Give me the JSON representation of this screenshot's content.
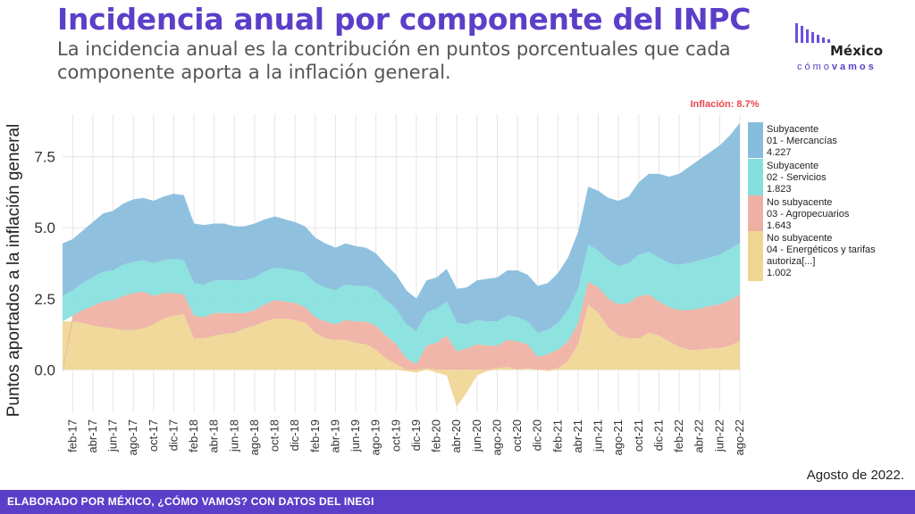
{
  "header": {
    "title": "Incidencia anual por componente del INPC",
    "subtitle": "La incidencia anual es la contribución en puntos porcentuales que cada componente aporta a la inflación general."
  },
  "logo": {
    "name": "México",
    "tagline_a": "cómo",
    "tagline_b": "vamos"
  },
  "footer": {
    "credit": "ELABORADO POR MÉXICO, ¿CÓMO VAMOS? CON DATOS DEL INEGI",
    "date_note": "Agosto de 2022."
  },
  "colors": {
    "mercancias": "#86bcdc",
    "servicios": "#84e0dc",
    "agropecuarios": "#eeb0a2",
    "energeticos": "#f0d592",
    "annotation": "#e8474f",
    "grid": "#e5e5e5"
  },
  "chart_data": {
    "type": "area",
    "stacked": true,
    "ylabel": "Puntos aportados a la inflación general",
    "xlabel": "",
    "ylim": [
      -1.5,
      9.0
    ],
    "yticks": [
      0.0,
      2.5,
      5.0,
      7.5
    ],
    "ytick_labels": [
      "0.0",
      "2.5",
      "5.0",
      "7.5"
    ],
    "grid": true,
    "legend_position": "right",
    "annotation": "Inflación: 8.7%",
    "x_tick_labels": [
      "feb-17",
      "abr-17",
      "jun-17",
      "ago-17",
      "oct-17",
      "dic-17",
      "feb-18",
      "abr-18",
      "jun-18",
      "ago-18",
      "oct-18",
      "dic-18",
      "feb-19",
      "abr-19",
      "jun-19",
      "ago-19",
      "oct-19",
      "dic-19",
      "feb-20",
      "abr-20",
      "jun-20",
      "ago-20",
      "oct-20",
      "dic-20",
      "feb-21",
      "abr-21",
      "jun-21",
      "ago-21",
      "oct-21",
      "dic-21",
      "feb-22",
      "abr-22",
      "jun-22",
      "ago-22"
    ],
    "x": [
      "ene-17",
      "feb-17",
      "mar-17",
      "abr-17",
      "may-17",
      "jun-17",
      "jul-17",
      "ago-17",
      "sep-17",
      "oct-17",
      "nov-17",
      "dic-17",
      "ene-18",
      "feb-18",
      "mar-18",
      "abr-18",
      "may-18",
      "jun-18",
      "jul-18",
      "ago-18",
      "sep-18",
      "oct-18",
      "nov-18",
      "dic-18",
      "ene-19",
      "feb-19",
      "mar-19",
      "abr-19",
      "may-19",
      "jun-19",
      "jul-19",
      "ago-19",
      "sep-19",
      "oct-19",
      "nov-19",
      "dic-19",
      "ene-20",
      "feb-20",
      "mar-20",
      "abr-20",
      "may-20",
      "jun-20",
      "jul-20",
      "ago-20",
      "sep-20",
      "oct-20",
      "nov-20",
      "dic-20",
      "ene-21",
      "feb-21",
      "mar-21",
      "abr-21",
      "may-21",
      "jun-21",
      "jul-21",
      "ago-21",
      "sep-21",
      "oct-21",
      "nov-21",
      "dic-21",
      "ene-22",
      "feb-22",
      "mar-22",
      "abr-22",
      "may-22",
      "jun-22",
      "jul-22",
      "ago-22"
    ],
    "series": [
      {
        "name": "Subyacente\n01 - Mercancías\n4.227",
        "key": "mercancias",
        "values": [
          1.85,
          1.8,
          1.85,
          1.95,
          2.05,
          2.1,
          2.15,
          2.2,
          2.2,
          2.2,
          2.25,
          2.3,
          2.3,
          2.1,
          2.1,
          2.0,
          2.0,
          1.9,
          1.9,
          1.9,
          1.85,
          1.8,
          1.75,
          1.7,
          1.65,
          1.6,
          1.55,
          1.5,
          1.45,
          1.4,
          1.35,
          1.3,
          1.25,
          1.2,
          1.2,
          1.15,
          1.15,
          1.1,
          1.15,
          1.2,
          1.3,
          1.4,
          1.5,
          1.55,
          1.6,
          1.65,
          1.65,
          1.65,
          1.65,
          1.75,
          1.85,
          2.0,
          2.05,
          2.1,
          2.2,
          2.3,
          2.35,
          2.55,
          2.75,
          2.95,
          3.05,
          3.2,
          3.4,
          3.55,
          3.7,
          3.85,
          4.0,
          4.227
        ]
      },
      {
        "name": "Subyacente\n02 - Servicios\n1.823",
        "key": "servicios",
        "values": [
          0.9,
          0.9,
          0.95,
          1.0,
          1.05,
          1.05,
          1.1,
          1.1,
          1.1,
          1.15,
          1.15,
          1.2,
          1.2,
          1.15,
          1.15,
          1.15,
          1.15,
          1.15,
          1.15,
          1.15,
          1.15,
          1.15,
          1.15,
          1.15,
          1.2,
          1.2,
          1.2,
          1.2,
          1.25,
          1.25,
          1.25,
          1.25,
          1.25,
          1.25,
          1.2,
          1.15,
          1.15,
          1.2,
          1.2,
          1.0,
          0.85,
          0.85,
          0.85,
          0.85,
          0.85,
          0.85,
          0.8,
          0.85,
          0.85,
          0.95,
          1.1,
          1.2,
          1.3,
          1.3,
          1.35,
          1.35,
          1.4,
          1.45,
          1.5,
          1.55,
          1.55,
          1.6,
          1.65,
          1.7,
          1.7,
          1.75,
          1.8,
          1.823
        ]
      },
      {
        "name": "No subyacente\n03 - Agropecuarios\n1.643",
        "key": "agropecuarios",
        "values": [
          -0.1,
          0.2,
          0.45,
          0.7,
          0.9,
          1.0,
          1.2,
          1.3,
          1.3,
          1.0,
          0.9,
          0.8,
          0.7,
          0.8,
          0.75,
          0.8,
          0.75,
          0.7,
          0.55,
          0.55,
          0.6,
          0.65,
          0.6,
          0.6,
          0.55,
          0.55,
          0.6,
          0.55,
          0.7,
          0.75,
          0.8,
          0.85,
          0.8,
          0.7,
          0.4,
          0.2,
          0.8,
          0.95,
          1.2,
          0.65,
          0.75,
          0.9,
          0.85,
          0.8,
          0.95,
          1.0,
          0.85,
          0.45,
          0.55,
          0.65,
          0.7,
          0.75,
          0.8,
          0.9,
          1.0,
          1.1,
          1.25,
          1.5,
          1.35,
          1.2,
          1.2,
          1.3,
          1.4,
          1.45,
          1.5,
          1.55,
          1.6,
          1.643
        ]
      },
      {
        "name": "No subyacente\n04 - Energéticos y tarifas\nautoriza[...]\n1.002",
        "key": "energeticos",
        "values": [
          1.7,
          1.7,
          1.65,
          1.55,
          1.5,
          1.45,
          1.4,
          1.4,
          1.45,
          1.6,
          1.8,
          1.9,
          1.95,
          1.1,
          1.1,
          1.2,
          1.25,
          1.3,
          1.45,
          1.55,
          1.7,
          1.8,
          1.8,
          1.75,
          1.65,
          1.3,
          1.1,
          1.05,
          1.05,
          0.95,
          0.9,
          0.7,
          0.4,
          0.2,
          -0.05,
          -0.1,
          0.05,
          -0.1,
          -0.2,
          -1.3,
          -0.8,
          -0.2,
          -0.05,
          0.05,
          0.1,
          0.0,
          0.05,
          0.0,
          -0.05,
          0.05,
          0.3,
          0.9,
          2.3,
          2.0,
          1.5,
          1.2,
          1.1,
          1.1,
          1.3,
          1.2,
          1.0,
          0.8,
          0.7,
          0.7,
          0.75,
          0.75,
          0.85,
          1.002
        ]
      }
    ]
  }
}
